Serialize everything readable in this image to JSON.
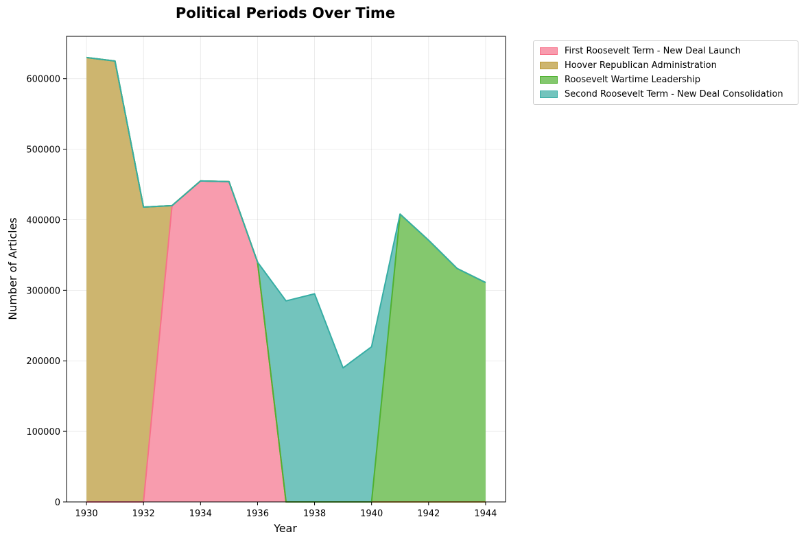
{
  "chart_data": {
    "type": "area",
    "stacked": true,
    "title": "Political Periods Over Time",
    "xlabel": "Year",
    "ylabel": "Number of Articles",
    "x": [
      1930,
      1931,
      1932,
      1933,
      1934,
      1935,
      1936,
      1937,
      1938,
      1939,
      1940,
      1941,
      1942,
      1943,
      1944
    ],
    "xlim": [
      1929.3,
      1944.7
    ],
    "ylim": [
      0,
      660000
    ],
    "xticks": [
      1930,
      1932,
      1934,
      1936,
      1938,
      1940,
      1942,
      1944
    ],
    "yticks": [
      0,
      100000,
      200000,
      300000,
      400000,
      500000,
      600000
    ],
    "grid": true,
    "legend_position": "outside-top-right",
    "series": [
      {
        "name": "First Roosevelt Term - New Deal Launch",
        "color": "#f77189",
        "fill": "#f89cae",
        "values": [
          0,
          0,
          0,
          420000,
          455000,
          454000,
          340000,
          0,
          0,
          0,
          0,
          0,
          0,
          0,
          0
        ]
      },
      {
        "name": "Hoover Republican Administration",
        "color": "#bb9832",
        "fill": "#cdb56f",
        "values": [
          630000,
          625000,
          418000,
          0,
          0,
          0,
          0,
          0,
          0,
          0,
          0,
          0,
          0,
          0,
          0
        ]
      },
      {
        "name": "Roosevelt Wartime Leadership",
        "color": "#50b131",
        "fill": "#84c86e",
        "values": [
          0,
          0,
          0,
          0,
          0,
          0,
          0,
          0,
          0,
          0,
          0,
          408000,
          371000,
          331000,
          311000
        ]
      },
      {
        "name": "Second Roosevelt Term - New Deal Consolidation",
        "color": "#36ada4",
        "fill": "#73c4bd",
        "values": [
          0,
          0,
          0,
          0,
          0,
          0,
          0,
          285000,
          295000,
          190000,
          220000,
          0,
          0,
          0,
          0
        ]
      }
    ]
  }
}
